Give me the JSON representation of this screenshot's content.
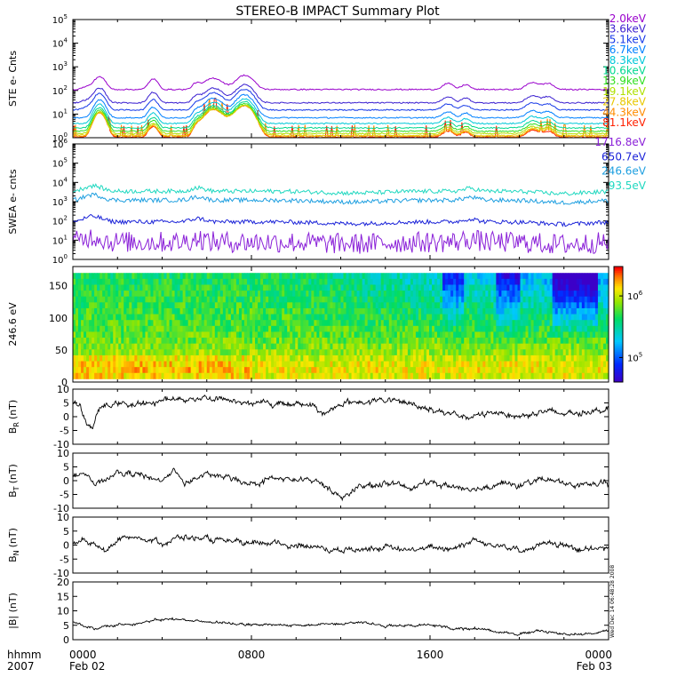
{
  "figure": {
    "title": "STEREO-B IMPACT Summary Plot",
    "time_label_line1": "hhmm",
    "time_label_line2": "2007",
    "timestamp": "Wed Dec 14 06:48:28 2008",
    "x_ticks": [
      {
        "value": 0,
        "label": "0000",
        "sublabel": "Feb 02"
      },
      {
        "value": 8,
        "label": "0800",
        "sublabel": ""
      },
      {
        "value": 16,
        "label": "1600",
        "sublabel": ""
      },
      {
        "value": 24,
        "label": "0000",
        "sublabel": "Feb 03"
      }
    ]
  },
  "chart_data": [
    {
      "id": "ste",
      "type": "line",
      "ylabel": "STE e- Cnts",
      "yscale": "log",
      "ylim": [
        1,
        100000
      ],
      "xlim": [
        0,
        24
      ],
      "y_ticks": [
        {
          "base": "10",
          "exp": "0",
          "value": 1
        },
        {
          "base": "10",
          "exp": "1",
          "value": 10
        },
        {
          "base": "10",
          "exp": "2",
          "value": 100
        },
        {
          "base": "10",
          "exp": "3",
          "value": 1000
        },
        {
          "base": "10",
          "exp": "4",
          "value": 10000
        },
        {
          "base": "10",
          "exp": "5",
          "value": 100000
        }
      ],
      "series": [
        {
          "name": "2.0keV",
          "color": "#9900cc",
          "base": 110
        },
        {
          "name": "3.6keV",
          "color": "#3a1fd0",
          "base": 30
        },
        {
          "name": "5.1keV",
          "color": "#1538e8",
          "base": 15
        },
        {
          "name": "6.7keV",
          "color": "#0080ff",
          "base": 7
        },
        {
          "name": "8.3keV",
          "color": "#00c8d8",
          "base": 4
        },
        {
          "name": "10.6keV",
          "color": "#00d890",
          "base": 2.6
        },
        {
          "name": "13.9keV",
          "color": "#30e020",
          "base": 1.9
        },
        {
          "name": "19.1keV",
          "color": "#b0e000",
          "base": 1.5
        },
        {
          "name": "27.8keV",
          "color": "#e8c800",
          "base": 1.25
        },
        {
          "name": "44.3keV",
          "color": "#ff8c00",
          "base": 1.12
        },
        {
          "name": "81.1keV",
          "color": "#ff2000",
          "base": 1.05
        }
      ]
    },
    {
      "id": "swea",
      "type": "line",
      "ylabel": "SWEA e- cnts",
      "yscale": "log",
      "ylim": [
        1,
        1000000
      ],
      "xlim": [
        0,
        24
      ],
      "y_ticks": [
        {
          "base": "10",
          "exp": "0",
          "value": 1
        },
        {
          "base": "10",
          "exp": "1",
          "value": 10
        },
        {
          "base": "10",
          "exp": "2",
          "value": 100
        },
        {
          "base": "10",
          "exp": "3",
          "value": 1000
        },
        {
          "base": "10",
          "exp": "4",
          "value": 10000
        },
        {
          "base": "10",
          "exp": "5",
          "value": 100000
        },
        {
          "base": "10",
          "exp": "6",
          "value": 1000000
        }
      ],
      "series": [
        {
          "name": "1716.8eV",
          "color": "#8a20d8",
          "base": 8
        },
        {
          "name": "650.7eV",
          "color": "#1a22d8",
          "base": 90
        },
        {
          "name": "246.6eV",
          "color": "#1e9fe0",
          "base": 1200
        },
        {
          "name": "93.5eV",
          "color": "#20d8c0",
          "base": 3500
        }
      ]
    },
    {
      "id": "pad",
      "type": "heatmap",
      "ylabel": "246.6 eV",
      "ylim": [
        0,
        180
      ],
      "xlim": [
        0,
        24
      ],
      "y_ticks": [
        0,
        50,
        100,
        150
      ],
      "colorbar": {
        "scale": "log",
        "range": [
          40000,
          3000000
        ],
        "ticks": [
          {
            "base": "10",
            "exp": "5",
            "value": 100000
          },
          {
            "base": "10",
            "exp": "6",
            "value": 1000000
          }
        ]
      }
    },
    {
      "id": "br",
      "type": "line",
      "ylabel": "B",
      "ylabel_sub": "R",
      "ylabel_unit": "(nT)",
      "ylim": [
        -10,
        10
      ],
      "xlim": [
        0,
        24
      ],
      "y_ticks": [
        -10,
        -5,
        0,
        5,
        10
      ],
      "x": [
        0,
        0.3,
        0.6,
        0.9,
        1.2,
        2,
        3,
        4,
        5,
        6,
        7,
        8,
        9,
        10,
        10.8,
        11.2,
        11.6,
        12,
        13,
        14,
        15,
        16,
        17,
        17.4,
        17.8,
        18.5,
        19,
        20,
        21,
        22,
        23,
        24
      ],
      "values": [
        5,
        4,
        -2,
        -4,
        3,
        5,
        4,
        6,
        6.5,
        7,
        6,
        5,
        4.5,
        5,
        4,
        1,
        2,
        5,
        5.5,
        6,
        5,
        3,
        1,
        -1,
        0,
        1,
        2,
        0,
        2,
        1,
        2,
        3
      ]
    },
    {
      "id": "bt",
      "type": "line",
      "ylabel": "B",
      "ylabel_sub": "T",
      "ylabel_unit": "(nT)",
      "ylim": [
        -10,
        10
      ],
      "xlim": [
        0,
        24
      ],
      "y_ticks": [
        -10,
        -5,
        0,
        5,
        10
      ],
      "x": [
        0,
        0.5,
        1,
        2,
        3,
        4,
        4.5,
        5,
        5.5,
        6,
        7,
        8,
        9,
        10,
        11,
        11.5,
        12,
        12.5,
        13,
        14,
        15,
        16,
        17,
        18,
        19,
        20,
        21,
        22,
        23,
        24
      ],
      "values": [
        2,
        3,
        -2,
        3,
        2,
        0,
        4,
        -1,
        1,
        2,
        1,
        -1,
        1,
        0,
        0,
        -3,
        -6,
        -4,
        -2,
        -1,
        -2,
        -1,
        -2,
        -3,
        -1,
        -2,
        1,
        -1,
        -2,
        -1
      ]
    },
    {
      "id": "bn",
      "type": "line",
      "ylabel": "B",
      "ylabel_sub": "N",
      "ylabel_unit": "(nT)",
      "ylim": [
        -10,
        10
      ],
      "xlim": [
        0,
        24
      ],
      "y_ticks": [
        -10,
        -5,
        0,
        5,
        10
      ],
      "x": [
        0,
        0.5,
        1,
        1.5,
        2,
        3,
        4,
        5,
        6,
        7,
        8,
        9,
        10,
        11,
        12,
        13,
        14,
        15,
        16,
        17,
        18,
        18.5,
        19,
        20,
        21,
        22,
        23,
        24
      ],
      "values": [
        0,
        2,
        0,
        -2,
        2,
        3,
        1,
        3,
        2,
        1,
        0,
        1,
        0,
        -1,
        -2,
        -1,
        -1,
        -2,
        -1,
        -1,
        2,
        0,
        1,
        -2,
        0,
        0,
        -2,
        -1
      ]
    },
    {
      "id": "bmag",
      "type": "line",
      "ylabel": "|B| (nT)",
      "ylim": [
        0,
        20
      ],
      "xlim": [
        0,
        24
      ],
      "y_ticks": [
        0,
        5,
        10,
        15,
        20
      ],
      "x": [
        0,
        0.5,
        1,
        2,
        3,
        4,
        5,
        6,
        7,
        8,
        9,
        10,
        11,
        12,
        13,
        14,
        15,
        16,
        17,
        18,
        19,
        20,
        21,
        22,
        23,
        24
      ],
      "values": [
        6,
        5,
        4,
        5,
        6,
        7,
        7,
        6,
        6,
        5,
        5,
        5,
        5,
        6,
        6,
        5,
        5,
        5,
        4,
        4,
        3,
        2,
        3,
        2,
        2,
        3
      ]
    }
  ]
}
